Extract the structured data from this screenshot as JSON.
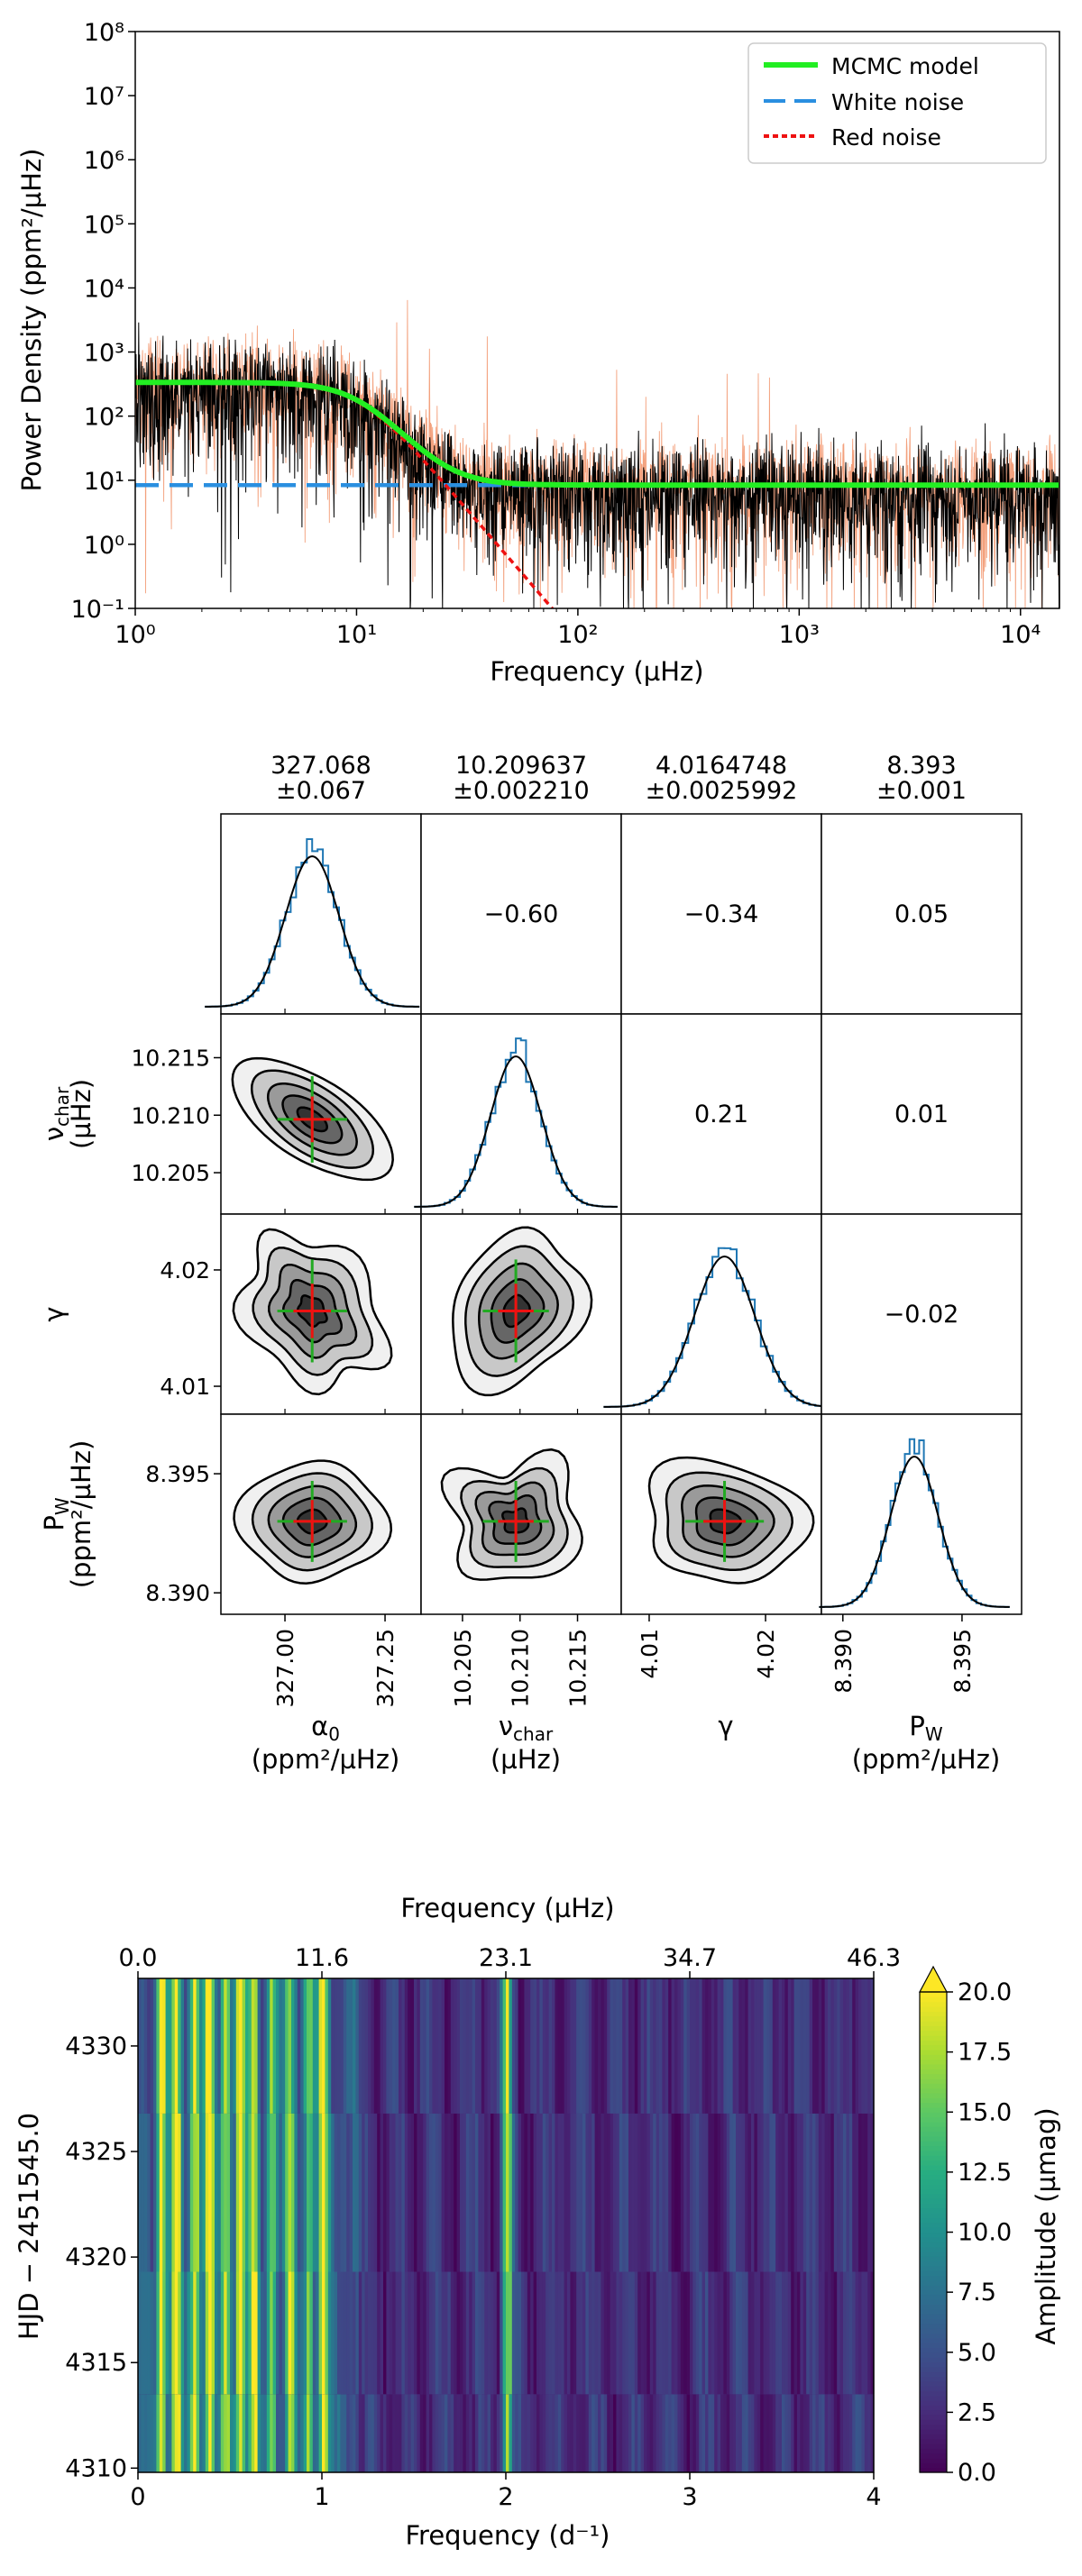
{
  "chart_data": [
    {
      "type": "line",
      "xscale": "log",
      "yscale": "log",
      "xlabel": "Frequency (µHz)",
      "ylabel": "Power Density (ppm²/µHz)",
      "xlim": [
        1,
        15000
      ],
      "ylim": [
        0.1,
        100000000
      ],
      "xticks": [
        {
          "label": "10⁰",
          "value": 1
        },
        {
          "label": "10¹",
          "value": 10
        },
        {
          "label": "10²",
          "value": 100
        },
        {
          "label": "10³",
          "value": 1000
        },
        {
          "label": "10⁴",
          "value": 10000
        }
      ],
      "yticks": [
        {
          "label": "10⁻¹",
          "value": 0.1
        },
        {
          "label": "10⁰",
          "value": 1
        },
        {
          "label": "10¹",
          "value": 10
        },
        {
          "label": "10²",
          "value": 100
        },
        {
          "label": "10³",
          "value": 1000
        },
        {
          "label": "10⁴",
          "value": 10000
        },
        {
          "label": "10⁵",
          "value": 100000
        },
        {
          "label": "10⁶",
          "value": 1000000
        },
        {
          "label": "10⁷",
          "value": 10000000
        },
        {
          "label": "10⁸",
          "value": 100000000
        }
      ],
      "legend_position": "top-right",
      "series": [
        {
          "name": "MCMC model",
          "color": "#22ee22",
          "style": "solid",
          "model": {
            "alpha0": 327.068,
            "nu_char": 10.209637,
            "gamma": 4.0164748,
            "Pw": 8.393
          }
        },
        {
          "name": "White noise",
          "color": "#2a8fe0",
          "style": "dashed",
          "value": 8.393
        },
        {
          "name": "Red noise",
          "color": "#ee1111",
          "style": "dotted",
          "model": {
            "alpha0": 327.068,
            "nu_char": 10.209637,
            "gamma": 4.0164748
          }
        }
      ],
      "spectrum_colors": [
        "#000000",
        "#f08a5d"
      ]
    },
    {
      "type": "corner",
      "parameters": [
        {
          "name": "α₀",
          "unit": "(ppm²/µHz)",
          "title_value": "327.068",
          "title_err": "±0.067",
          "mean": 327.068,
          "sigma": 0.067,
          "range": [
            326.84,
            327.34
          ],
          "ticks": [
            327.0,
            327.25
          ],
          "tick_labels": [
            "327.00",
            "327.25"
          ]
        },
        {
          "name": "ν_char",
          "unit": "(µHz)",
          "title_value": "10.209637",
          "title_err": "±0.002210",
          "mean": 10.209637,
          "sigma": 0.00221,
          "range": [
            10.2014,
            10.2188
          ],
          "ticks": [
            10.205,
            10.21,
            10.215
          ],
          "tick_labels": [
            "10.205",
            "10.210",
            "10.215"
          ]
        },
        {
          "name": "γ",
          "unit": "",
          "title_value": "4.0164748",
          "title_err": "±0.0025992",
          "mean": 4.0164748,
          "sigma": 0.0025992,
          "range": [
            4.0076,
            4.0248
          ],
          "ticks": [
            4.01,
            4.02
          ],
          "tick_labels": [
            "4.01",
            "4.02"
          ]
        },
        {
          "name": "P_W",
          "unit": "(ppm²/µHz)",
          "title_value": "8.393",
          "title_err": "±0.001",
          "mean": 8.393,
          "sigma": 0.001,
          "range": [
            8.3891,
            8.3975
          ],
          "ticks": [
            8.39,
            8.395
          ],
          "tick_labels": [
            "8.390",
            "8.395"
          ]
        }
      ],
      "ylabels": [
        {
          "name": "ν",
          "sub": "char",
          "unit": "(µHz)"
        },
        {
          "name": "γ",
          "sub": "",
          "unit": ""
        },
        {
          "name": "P",
          "sub": "W",
          "unit": "(ppm²/µHz)"
        }
      ],
      "xlabels": [
        {
          "name": "α",
          "sub": "0",
          "unit": "(ppm²/µHz)"
        },
        {
          "name": "ν",
          "sub": "char",
          "unit": "(µHz)"
        },
        {
          "name": "γ",
          "sub": "",
          "unit": ""
        },
        {
          "name": "P",
          "sub": "W",
          "unit": "(ppm²/µHz)"
        }
      ],
      "correlations": [
        {
          "row": 0,
          "col": 1,
          "value": "−0.60",
          "r": -0.6
        },
        {
          "row": 0,
          "col": 2,
          "value": "−0.34",
          "r": -0.34
        },
        {
          "row": 0,
          "col": 3,
          "value": "0.05",
          "r": 0.05
        },
        {
          "row": 1,
          "col": 2,
          "value": "0.21",
          "r": 0.21
        },
        {
          "row": 1,
          "col": 3,
          "value": "0.01",
          "r": 0.01
        },
        {
          "row": 2,
          "col": 3,
          "value": "−0.02",
          "r": -0.02
        }
      ],
      "histogram_color": "#1f77b4",
      "marker_colors": {
        "median": "#ee1111",
        "error_bar": "#22aa22"
      }
    },
    {
      "type": "heatmap",
      "xlabel": "Frequency (d⁻¹)",
      "xlim": [
        0,
        4
      ],
      "xticks": [
        {
          "label": "0",
          "value": 0
        },
        {
          "label": "1",
          "value": 1
        },
        {
          "label": "2",
          "value": 2
        },
        {
          "label": "3",
          "value": 3
        },
        {
          "label": "4",
          "value": 4
        }
      ],
      "top_xlabel": "Frequency (µHz)",
      "top_xticks": [
        {
          "label": "0.0",
          "value": 0
        },
        {
          "label": "11.6",
          "value": 1
        },
        {
          "label": "23.1",
          "value": 2
        },
        {
          "label": "34.7",
          "value": 3
        },
        {
          "label": "46.3",
          "value": 4
        }
      ],
      "ylabel": "HJD − 2451545.0",
      "ylim": [
        4309.8,
        4333.2
      ],
      "yticks": [
        {
          "label": "4310",
          "value": 4310
        },
        {
          "label": "4315",
          "value": 4315
        },
        {
          "label": "4320",
          "value": 4320
        },
        {
          "label": "4325",
          "value": 4325
        },
        {
          "label": "4330",
          "value": 4330
        }
      ],
      "colorbar": {
        "label": "Amplitude (µmag)",
        "vmin": 0,
        "vmax": 20,
        "extend": "max",
        "ticks": [
          {
            "label": "0.0",
            "value": 0
          },
          {
            "label": "2.5",
            "value": 2.5
          },
          {
            "label": "5.0",
            "value": 5
          },
          {
            "label": "7.5",
            "value": 7.5
          },
          {
            "label": "10.0",
            "value": 10
          },
          {
            "label": "12.5",
            "value": 12.5
          },
          {
            "label": "15.0",
            "value": 15
          },
          {
            "label": "17.5",
            "value": 17.5
          },
          {
            "label": "20.0",
            "value": 20
          }
        ],
        "colormap": "viridis"
      },
      "ridges": [
        {
          "freq": 0.12,
          "amp": 17
        },
        {
          "freq": 0.2,
          "amp": 18
        },
        {
          "freq": 0.3,
          "amp": 16
        },
        {
          "freq": 0.38,
          "amp": 19
        },
        {
          "freq": 0.47,
          "amp": 14
        },
        {
          "freq": 0.55,
          "amp": 18
        },
        {
          "freq": 0.62,
          "amp": 15
        },
        {
          "freq": 0.72,
          "amp": 11
        },
        {
          "freq": 0.82,
          "amp": 13
        },
        {
          "freq": 0.92,
          "amp": 11
        },
        {
          "freq": 1.0,
          "amp": 17
        },
        {
          "freq": 2.0,
          "amp": 16
        }
      ]
    }
  ]
}
